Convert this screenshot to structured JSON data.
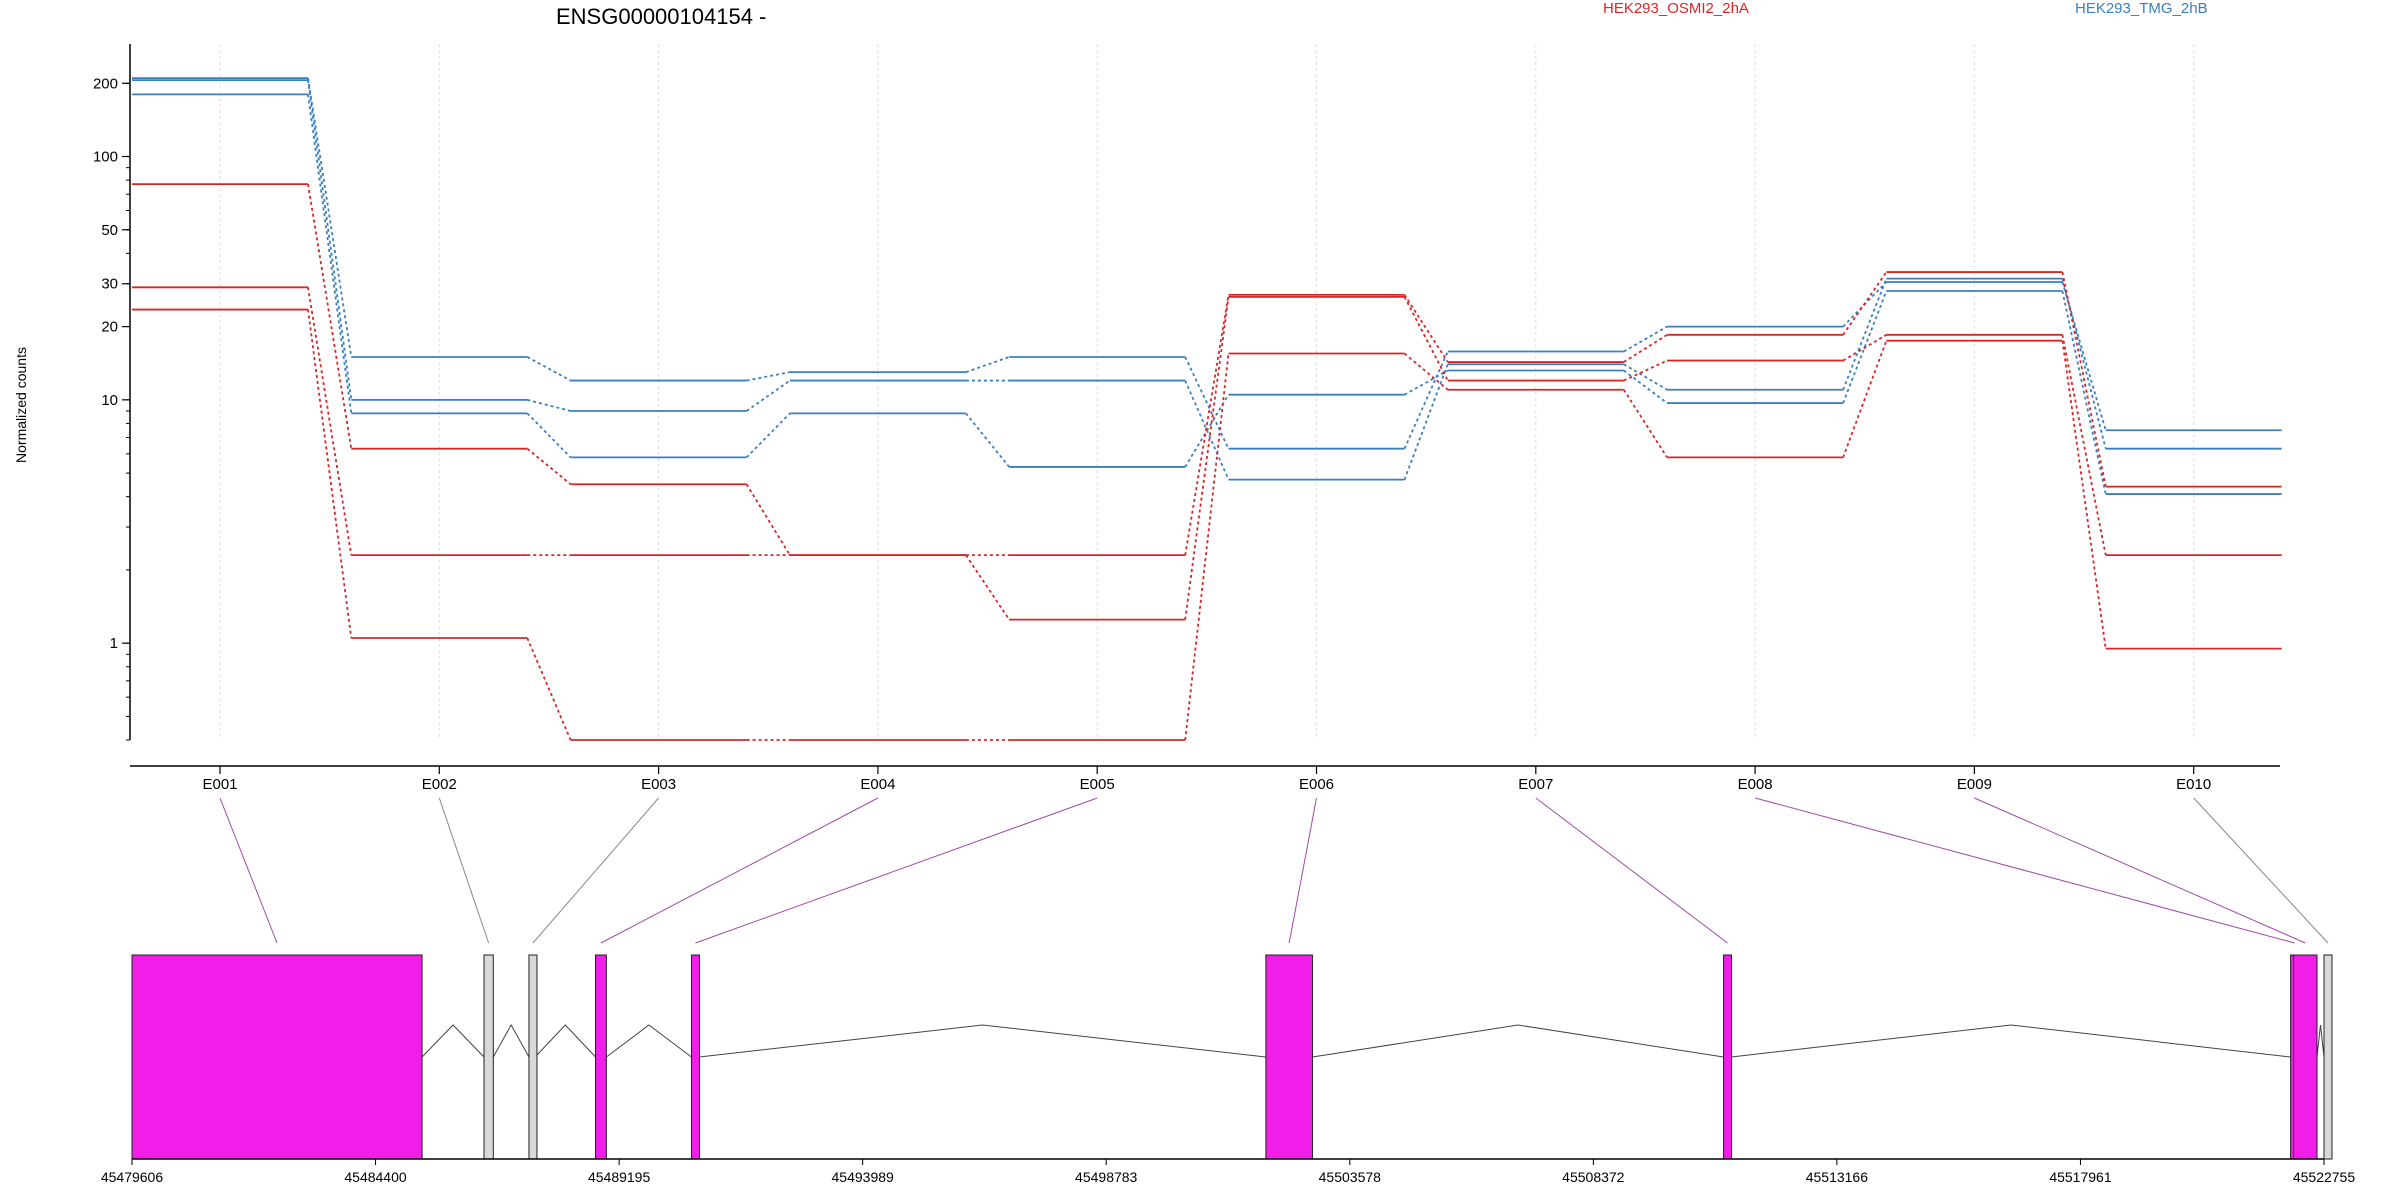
{
  "chart_data": {
    "type": "line",
    "title": "ENSG00000104154 -",
    "xlabel": "",
    "ylabel": "Normalized counts",
    "y_scale": "log",
    "ylim": [
      0.4,
      290
    ],
    "y_ticks": [
      1,
      10,
      20,
      30,
      50,
      100,
      200
    ],
    "categories": [
      "E001",
      "E002",
      "E003",
      "E004",
      "E005",
      "E006",
      "E007",
      "E008",
      "E009",
      "E010"
    ],
    "grid": true,
    "legend": "top",
    "legend_entries": [
      {
        "label": "HEK293_OSMI2_2hA",
        "color": "#d62728"
      },
      {
        "label": "HEK293_TMG_2hB",
        "color": "#3a7fc0"
      }
    ],
    "series": [
      {
        "group": "HEK293_TMG_2hB",
        "color": "#3a7fc0",
        "values": [
          210,
          15,
          12,
          13,
          15,
          6.3,
          15.8,
          20,
          30.5,
          7.5
        ]
      },
      {
        "group": "HEK293_TMG_2hB",
        "color": "#3a7fc0",
        "values": [
          206,
          10,
          9,
          12,
          12,
          4.7,
          14,
          11,
          31.5,
          6.3
        ]
      },
      {
        "group": "HEK293_TMG_2hB",
        "color": "#3a7fc0",
        "values": [
          180,
          8.8,
          5.8,
          8.8,
          5.3,
          10.5,
          13.2,
          9.7,
          28,
          4.1
        ]
      },
      {
        "group": "HEK293_OSMI2_2hA",
        "color": "#d62728",
        "values": [
          77,
          6.3,
          4.5,
          2.3,
          2.3,
          27,
          14.3,
          18.5,
          33.5,
          4.4
        ]
      },
      {
        "group": "HEK293_OSMI2_2hA",
        "color": "#d62728",
        "values": [
          29,
          2.3,
          2.3,
          2.3,
          1.25,
          26.5,
          12,
          14.5,
          18.5,
          2.3
        ]
      },
      {
        "group": "HEK293_OSMI2_2hA",
        "color": "#d62728",
        "values": [
          23.5,
          1.05,
          0.4,
          0.4,
          0.4,
          15.5,
          11,
          5.8,
          17.5,
          0.95
        ]
      }
    ],
    "gene_model": {
      "x_ticks": [
        45479606,
        45484400,
        45489195,
        45493989,
        45498783,
        45503578,
        45508372,
        45513166,
        45517961,
        45522755
      ],
      "xlim": [
        45479606,
        45522755
      ],
      "exon_fill": "#f01ee8",
      "other_fill": "#d9d9d9",
      "exons": [
        {
          "id": "E001",
          "start": 45479606,
          "end": 45485316,
          "tested": true
        },
        {
          "id": "E002",
          "start": 45486535,
          "end": 45486718,
          "tested": false
        },
        {
          "id": "E003",
          "start": 45487420,
          "end": 45487542,
          "tested": false
        },
        {
          "id": "E004",
          "start": 45488730,
          "end": 45488944,
          "tested": true
        },
        {
          "id": "E005",
          "start": 45490619,
          "end": 45490772,
          "tested": true
        },
        {
          "id": "E006",
          "start": 45501926,
          "end": 45502843,
          "tested": true
        },
        {
          "id": "E007",
          "start": 45510935,
          "end": 45511088,
          "tested": true
        },
        {
          "id": "E008",
          "start": 45522097,
          "end": 45522157,
          "tested": true
        },
        {
          "id": "E009",
          "start": 45522157,
          "end": 45522617,
          "tested": true
        },
        {
          "id": "E010",
          "start": 45522755,
          "end": 45522908,
          "tested": false
        }
      ]
    }
  }
}
